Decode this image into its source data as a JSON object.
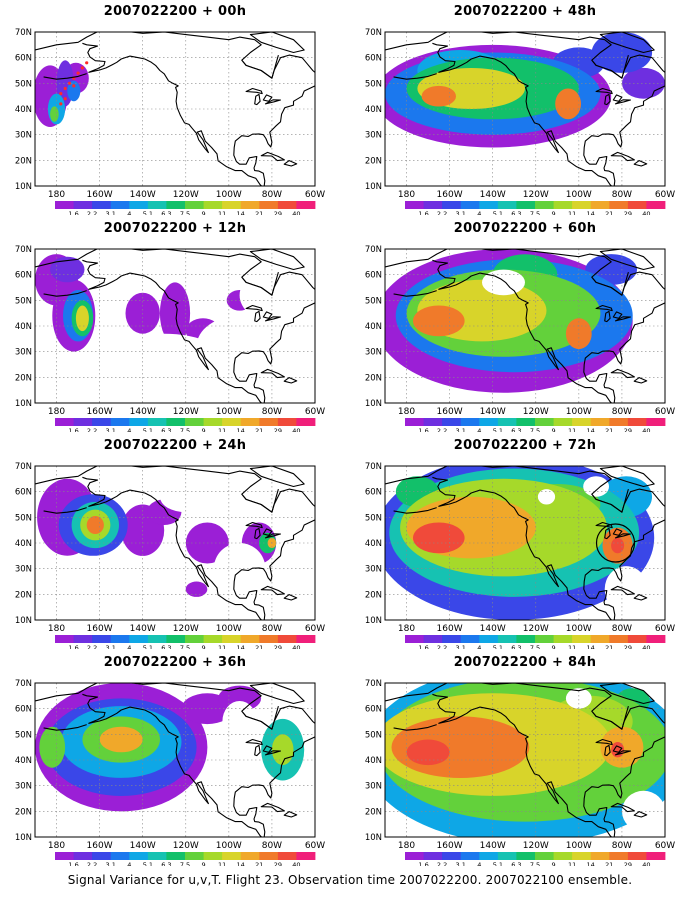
{
  "panels": [
    {
      "title": "2007022200 + 00h",
      "stage": 0
    },
    {
      "title": "2007022200 + 48h",
      "stage": 4
    },
    {
      "title": "2007022200 + 12h",
      "stage": 1
    },
    {
      "title": "2007022200 + 60h",
      "stage": 5
    },
    {
      "title": "2007022200 + 24h",
      "stage": 2
    },
    {
      "title": "2007022200 + 72h",
      "stage": 6
    },
    {
      "title": "2007022200 + 36h",
      "stage": 3
    },
    {
      "title": "2007022200 + 84h",
      "stage": 7
    }
  ],
  "lat_labels": [
    "70N",
    "60N",
    "50N",
    "40N",
    "30N",
    "20N",
    "10N"
  ],
  "lon_labels": [
    "180",
    "160W",
    "140W",
    "120W",
    "100W",
    "80W",
    "60W"
  ],
  "colorbar": {
    "labels": [
      "1.6",
      "2.2",
      "3.1",
      "4",
      "5.1",
      "6.3",
      "7.5",
      "9",
      "11",
      "14",
      "21",
      "29",
      "40"
    ],
    "colors": [
      "#9b1fd6",
      "#6e2fe0",
      "#3a47e8",
      "#1b78ee",
      "#0ea7e6",
      "#16c2b2",
      "#12c06a",
      "#63d13b",
      "#a6d92a",
      "#d8d42a",
      "#f0a82a",
      "#f07a2a",
      "#f04a3a",
      "#f01f7a"
    ]
  },
  "footer": "Signal Variance for u,v,T. Flight 23. Observation time 2007022200. 2007022100 ensemble."
}
